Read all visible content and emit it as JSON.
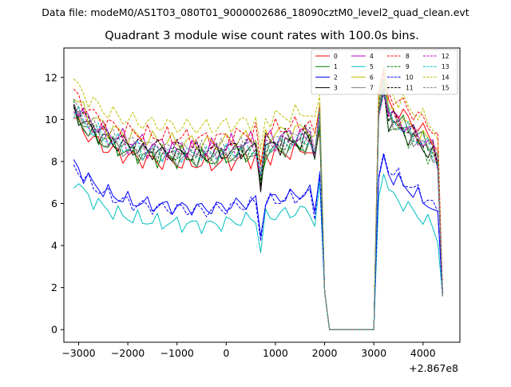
{
  "supertitle": "Data file: modeM0/AS1T03_080T01_9000002686_18090cztM0_level2_quad_clean.evt",
  "chart_data": {
    "type": "line",
    "title": "Quadrant 3 module wise count rates with 100.0s bins.",
    "xlabel": "",
    "ylabel": "",
    "x_offset_label": "+2.867e8",
    "xlim": [
      -3300,
      4750
    ],
    "ylim": [
      -0.6,
      13.4
    ],
    "xticks": [
      -3000,
      -2000,
      -1000,
      0,
      1000,
      2000,
      3000,
      4000
    ],
    "xtick_labels": [
      "−3000",
      "−2000",
      "−1000",
      "0",
      "1000",
      "2000",
      "3000",
      "4000"
    ],
    "yticks": [
      0,
      2,
      4,
      6,
      8,
      10,
      12
    ],
    "ytick_labels": [
      "0",
      "2",
      "4",
      "6",
      "8",
      "10",
      "12"
    ],
    "grid": false,
    "legend_position": "top-right",
    "x": [
      -3100,
      -3000,
      -2900,
      -2800,
      -2700,
      -2600,
      -2500,
      -2400,
      -2300,
      -2200,
      -2100,
      -2000,
      -1900,
      -1800,
      -1700,
      -1600,
      -1500,
      -1400,
      -1300,
      -1200,
      -1100,
      -1000,
      -900,
      -800,
      -700,
      -600,
      -500,
      -400,
      -300,
      -200,
      -100,
      0,
      100,
      200,
      300,
      400,
      500,
      600,
      700,
      800,
      900,
      1000,
      1100,
      1200,
      1300,
      1400,
      1500,
      1600,
      1700,
      1800,
      1900,
      2000,
      2100,
      2200,
      2300,
      2400,
      2500,
      2600,
      2700,
      2800,
      2900,
      3000,
      3100,
      3200,
      3300,
      3400,
      3500,
      3600,
      3700,
      3800,
      3900,
      4000,
      4100,
      4200,
      4300,
      4400
    ],
    "series": [
      {
        "name": "0",
        "color": "#ff0000",
        "dash": false,
        "base": 9.8,
        "amp": 0.55,
        "gap": 0.8,
        "peak": 12.2,
        "post": 10.9,
        "ripple": 0.35
      },
      {
        "name": "1",
        "color": "#008000",
        "dash": false,
        "base": 10.0,
        "amp": 0.55,
        "gap": 0.8,
        "peak": 11.9,
        "post": 10.5,
        "ripple": 0.35
      },
      {
        "name": "2",
        "color": "#0000ff",
        "dash": false,
        "base": 7.6,
        "amp": 0.45,
        "gap": 0.6,
        "peak": 8.3,
        "post": 7.6,
        "ripple": 0.3
      },
      {
        "name": "3",
        "color": "#000000",
        "dash": false,
        "base": 10.2,
        "amp": 0.55,
        "gap": 0.8,
        "peak": 11.6,
        "post": 10.1,
        "ripple": 0.35
      },
      {
        "name": "4",
        "color": "#bf00bf",
        "dash": false,
        "base": 10.6,
        "amp": 0.55,
        "gap": 0.8,
        "peak": 11.4,
        "post": 10.5,
        "ripple": 0.35
      },
      {
        "name": "5",
        "color": "#00bfbf",
        "dash": false,
        "base": 6.8,
        "amp": 0.45,
        "gap": 0.6,
        "peak": 7.4,
        "post": 6.7,
        "ripple": 0.3
      },
      {
        "name": "6",
        "color": "#bfbf00",
        "dash": false,
        "base": 10.8,
        "amp": 0.55,
        "gap": 0.9,
        "peak": 12.4,
        "post": 10.6,
        "ripple": 0.35
      },
      {
        "name": "7",
        "color": "#808080",
        "dash": false,
        "base": 10.0,
        "amp": 0.5,
        "gap": 0.8,
        "peak": 11.3,
        "post": 10.2,
        "ripple": 0.35
      },
      {
        "name": "8",
        "color": "#ff0000",
        "dash": true,
        "base": 11.0,
        "amp": 0.55,
        "gap": 0.9,
        "peak": 12.4,
        "post": 11.4,
        "ripple": 0.35
      },
      {
        "name": "9",
        "color": "#008000",
        "dash": true,
        "base": 10.1,
        "amp": 0.5,
        "gap": 0.8,
        "peak": 11.5,
        "post": 10.0,
        "ripple": 0.35
      },
      {
        "name": "10",
        "color": "#0000ff",
        "dash": true,
        "base": 7.5,
        "amp": 0.45,
        "gap": 0.6,
        "peak": 8.4,
        "post": 7.8,
        "ripple": 0.3
      },
      {
        "name": "11",
        "color": "#000000",
        "dash": true,
        "base": 10.4,
        "amp": 0.5,
        "gap": 0.8,
        "peak": 11.3,
        "post": 10.4,
        "ripple": 0.35
      },
      {
        "name": "12",
        "color": "#bf00bf",
        "dash": true,
        "base": 10.3,
        "amp": 0.5,
        "gap": 0.8,
        "peak": 11.2,
        "post": 10.4,
        "ripple": 0.35
      },
      {
        "name": "13",
        "color": "#00bfbf",
        "dash": true,
        "base": 10.2,
        "amp": 0.5,
        "gap": 0.8,
        "peak": 11.3,
        "post": 10.3,
        "ripple": 0.35
      },
      {
        "name": "14",
        "color": "#bfbf00",
        "dash": true,
        "base": 11.6,
        "amp": 0.6,
        "gap": 0.9,
        "peak": 12.5,
        "post": 11.5,
        "ripple": 0.35
      },
      {
        "name": "15",
        "color": "#808080",
        "dash": true,
        "base": 10.4,
        "amp": 0.5,
        "gap": 0.8,
        "peak": 11.6,
        "post": 10.5,
        "ripple": 0.35
      }
    ]
  }
}
